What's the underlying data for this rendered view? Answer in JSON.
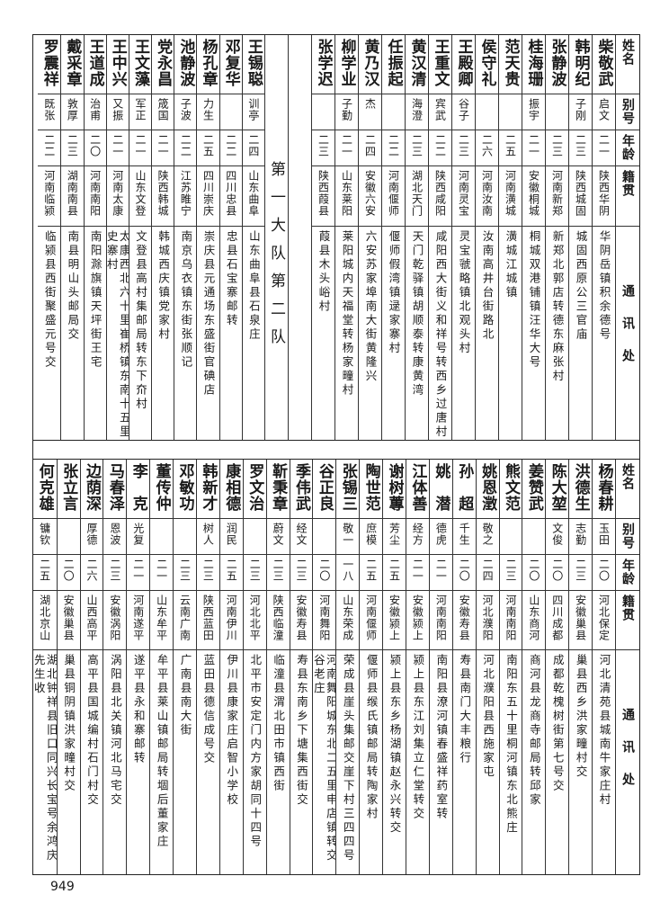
{
  "headers": {
    "name": "姓名",
    "alias": "别号",
    "age": "年龄",
    "origin": "籍贯",
    "address": "通讯处"
  },
  "top_section": {
    "rows_right": [
      {
        "name": "柴敬武",
        "alias": "启文",
        "age": "二一",
        "origin": "陕西华阴",
        "address": "华阴岳镇积余德号"
      },
      {
        "name": "韩明纪",
        "alias": "子刚",
        "age": "二三",
        "origin": "陕西城固",
        "address": "城固西原公三官庙"
      },
      {
        "name": "张静波",
        "alias": "",
        "age": "二三",
        "origin": "河南新郑",
        "address": "新郑北郭店转德东麻张村"
      },
      {
        "name": "桂海珊",
        "alias": "振宇",
        "age": "二一",
        "origin": "安徽桐城",
        "address": "桐城双港铺镇汪华大号"
      },
      {
        "name": "范天贵",
        "alias": "",
        "age": "二五",
        "origin": "河南潢城",
        "address": "潢城江城镇"
      },
      {
        "name": "侯守礼",
        "alias": "",
        "age": "二六",
        "origin": "河南汝南",
        "address": "汝南高井台街路北"
      },
      {
        "name": "王殿卿",
        "alias": "谷子",
        "age": "二三",
        "origin": "河南灵宝",
        "address": "灵宝虢略镇北观头村"
      },
      {
        "name": "王重文",
        "alias": "宾武",
        "age": "二二",
        "origin": "陕西咸阳",
        "address": "咸阳西大街义和祥号转西乡过唐村"
      },
      {
        "name": "黄汉清",
        "alias": "海澄",
        "age": "二三",
        "origin": "湖北天门",
        "address": "天门乾驿镇胡顺泰转康黄湾"
      },
      {
        "name": "任振起",
        "alias": "",
        "age": "二二",
        "origin": "河南偃师",
        "address": "偃师假湾镇逯家寨村"
      },
      {
        "name": "黄乃汉",
        "alias": "杰",
        "age": "二四",
        "origin": "安徽六安",
        "address": "六安苏家埠南大街黄隆兴"
      },
      {
        "name": "柳学业",
        "alias": "子勤",
        "age": "二一",
        "origin": "山东莱阳",
        "address": "莱阳城内天福堂转杨家疃村"
      },
      {
        "name": "张学迟",
        "alias": "",
        "age": "二三",
        "origin": "陕西葭县",
        "address": "葭县木头峪村"
      }
    ],
    "divider_label": "第一大队第二队",
    "rows_left": [
      {
        "name": "王锡聪",
        "alias": "训亭",
        "age": "二四",
        "origin": "山东曲阜",
        "address": "山东曲阜县石泉庄"
      },
      {
        "name": "邓复华",
        "alias": "",
        "age": "二二",
        "origin": "四川忠县",
        "address": "忠县石宝寨邮转"
      },
      {
        "name": "杨孔章",
        "alias": "力生",
        "age": "二五",
        "origin": "四川崇庆",
        "address": "崇庆县元通场东盛街官碘店"
      },
      {
        "name": "池静波",
        "alias": "子波",
        "age": "二二",
        "origin": "江苏睢宁",
        "address": "南京乌衣镇东街张顺记"
      },
      {
        "name": "党永昌",
        "alias": "筬国",
        "age": "二一",
        "origin": "陕西韩城",
        "address": "韩城西庆镇党家村"
      },
      {
        "name": "王文藻",
        "alias": "军正",
        "age": "二一",
        "origin": "山东文登",
        "address": "文登县高村集邮局转东下夼村"
      },
      {
        "name": "王中兴",
        "alias": "又振",
        "age": "二一",
        "origin": "河南太康",
        "address": "太康西北六十里崔桥镇东南十五里史寨村"
      },
      {
        "name": "王道成",
        "alias": "治甫",
        "age": "二〇",
        "origin": "河南南阳",
        "address": "南阳滁旗镇天坪街王宅"
      },
      {
        "name": "戴采章",
        "alias": "敦厚",
        "age": "二三",
        "origin": "湖南南县",
        "address": "南县明山头邮局交"
      },
      {
        "name": "罗震祥",
        "alias": "既张",
        "age": "二二",
        "origin": "河南临颍",
        "address": "临颍县西街聚盛元号交"
      }
    ]
  },
  "bottom_section": {
    "rows": [
      {
        "name": "杨春耕",
        "alias": "玉田",
        "age": "二〇",
        "origin": "河北保定",
        "address": "河北清苑县城南牛家庄村"
      },
      {
        "name": "洪德生",
        "alias": "志勤",
        "age": "二三",
        "origin": "安徽巢县",
        "address": "巢县西乡洪家疃村交"
      },
      {
        "name": "陈大堃",
        "alias": "文俊",
        "age": "二〇",
        "origin": "四川成都",
        "address": "成都乾槐树街第七号交"
      },
      {
        "name": "姜赞武",
        "alias": "",
        "age": "二〇",
        "origin": "山东商河",
        "address": "商河县龙商寺邮局转邱家"
      },
      {
        "name": "熊文范",
        "alias": "",
        "age": "二三",
        "origin": "河南南阳",
        "address": "南阳东五十里桐河镇东北熊庄"
      },
      {
        "name": "姚恩澂",
        "alias": "敬之",
        "age": "二四",
        "origin": "河北濮阳",
        "address": "河北濮阳县西施家屯"
      },
      {
        "name": "孙　超",
        "alias": "千生",
        "age": "二〇",
        "origin": "安徽寿县",
        "address": "寿县南门大丰粮行"
      },
      {
        "name": "姚　潜",
        "alias": "德虎",
        "age": "二一",
        "origin": "河南南阳",
        "address": "南阳县潦河镇春盛祥药室转"
      },
      {
        "name": "江体善",
        "alias": "经方",
        "age": "二一",
        "origin": "安徽颍上",
        "address": "颍上县东江刘集立仁堂转交"
      },
      {
        "name": "谢树蓴",
        "alias": "芳尘",
        "age": "二五",
        "origin": "安徽颍上",
        "address": "颍上县东乡杨湖镇赵永兴转交"
      },
      {
        "name": "陶世范",
        "alias": "庶模",
        "age": "二五",
        "origin": "河南偃师",
        "address": "偃师县缑氏镇邮局转陶家村"
      },
      {
        "name": "张锡三",
        "alias": "敬一",
        "age": "一八",
        "origin": "山东荣成",
        "address": "荣成县崖头集邮交崖下村三四四号"
      },
      {
        "name": "谷正良",
        "alias": "",
        "age": "二〇",
        "origin": "河南舞阳",
        "address": "河南舞阳城东北二五里申店镇转交谷老庄"
      },
      {
        "name": "季伟武",
        "alias": "经文",
        "age": "二三",
        "origin": "安徽寿县",
        "address": "寿县东南乡下塘集西街交"
      },
      {
        "name": "靳秉章",
        "alias": "蔚文",
        "age": "二三",
        "origin": "陕西临潼",
        "address": "临潼县渭北田市镇西街"
      },
      {
        "name": "罗文治",
        "alias": "",
        "age": "二三",
        "origin": "河北北平",
        "address": "北平市安定门内方家胡同十四号"
      },
      {
        "name": "康相德",
        "alias": "润民",
        "age": "二五",
        "origin": "河南伊川",
        "address": "伊川县康家庄启智小学校"
      },
      {
        "name": "韩新才",
        "alias": "树人",
        "age": "二三",
        "origin": "陕西蓝田",
        "address": "蓝田县德信成号交"
      },
      {
        "name": "邓敏功",
        "alias": "",
        "age": "二三",
        "origin": "云南广南",
        "address": "广南县南大街"
      },
      {
        "name": "董传仲",
        "alias": "",
        "age": "二一",
        "origin": "山东牟平",
        "address": "牟平县莱山镇邮局转堌后董家庄"
      },
      {
        "name": "李　克",
        "alias": "光复",
        "age": "二一",
        "origin": "河南遂平",
        "address": "遂平县永和寨邮转"
      },
      {
        "name": "马春泽",
        "alias": "恩波",
        "age": "二三",
        "origin": "安徽涡阳",
        "address": "涡阳县北关镇河北马宅交"
      },
      {
        "name": "边荫深",
        "alias": "厚德",
        "age": "二六",
        "origin": "山西高平",
        "address": "高平县国城编村石门村交"
      },
      {
        "name": "张立言",
        "alias": "",
        "age": "二〇",
        "origin": "安徽巢县",
        "address": "巢县铜阴镇洪家疃村交"
      },
      {
        "name": "何克雄",
        "alias": "镛钦",
        "age": "二五",
        "origin": "湖北京山",
        "address": "湖北钟祥县旧口同兴长宝号余鸿庆先生收"
      }
    ]
  },
  "page_number": "949"
}
